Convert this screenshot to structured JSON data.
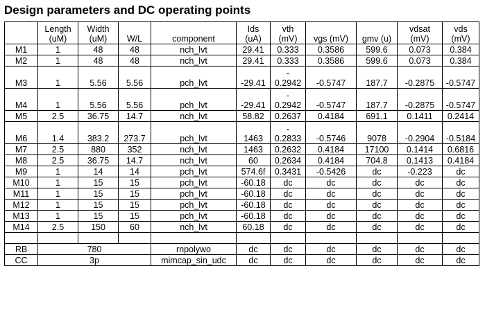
{
  "title": "Design parameters and DC operating points",
  "headers": [
    {
      "l1": "",
      "l2": ""
    },
    {
      "l1": "Length",
      "l2": "(uM)"
    },
    {
      "l1": "Width",
      "l2": "(uM)"
    },
    {
      "l1": "",
      "l2": "W/L"
    },
    {
      "l1": "",
      "l2": "component"
    },
    {
      "l1": "Ids",
      "l2": "(uA)"
    },
    {
      "l1": "vth",
      "l2": "(mV)"
    },
    {
      "l1": "",
      "l2": "vgs (mV)"
    },
    {
      "l1": "",
      "l2": "gmv (u)"
    },
    {
      "l1": "vdsat",
      "l2": "(mV)"
    },
    {
      "l1": "vds",
      "l2": "(mV)"
    }
  ],
  "rows": [
    {
      "tall": false,
      "cells": [
        "M1",
        "1",
        "48",
        "48",
        "nch_lvt",
        "29.41",
        "0.333",
        "0.3586",
        "599.6",
        "0.073",
        "0.384"
      ]
    },
    {
      "tall": false,
      "cells": [
        "M2",
        "1",
        "48",
        "48",
        "nch_lvt",
        "29.41",
        "0.333",
        "0.3586",
        "599.6",
        "0.073",
        "0.384"
      ]
    },
    {
      "tall": true,
      "cells": [
        "M3",
        "1",
        "5.56",
        "5.56",
        "pch_lvt",
        "-29.41",
        "0.2942",
        "-0.5747",
        "187.7",
        "-0.2875",
        "-0.5747"
      ]
    },
    {
      "tall": true,
      "cells": [
        "M4",
        "1",
        "5.56",
        "5.56",
        "pch_lvt",
        "-29.41",
        "0.2942",
        "-0.5747",
        "187.7",
        "-0.2875",
        "-0.5747"
      ]
    },
    {
      "tall": false,
      "cells": [
        "M5",
        "2.5",
        "36.75",
        "14.7",
        "nch_lvt",
        "58.82",
        "0.2637",
        "0.4184",
        "691.1",
        "0.1411",
        "0.2414"
      ]
    },
    {
      "tall": true,
      "cells": [
        "M6",
        "1.4",
        "383.2",
        "273.7",
        "pch_lvt",
        "1463",
        "0.2833",
        "-0.5746",
        "9078",
        "-0.2904",
        "-0.5184"
      ]
    },
    {
      "tall": false,
      "cells": [
        "M7",
        "2.5",
        "880",
        "352",
        "nch_lvt",
        "1463",
        "0.2632",
        "0.4184",
        "17100",
        "0.1414",
        "0.6816"
      ]
    },
    {
      "tall": false,
      "cells": [
        "M8",
        "2.5",
        "36.75",
        "14.7",
        "nch_lvt",
        "60",
        "0.2634",
        "0.4184",
        "704.8",
        "0.1413",
        "0.4184"
      ]
    },
    {
      "tall": false,
      "cells": [
        "M9",
        "1",
        "14",
        "14",
        "pch_lvt",
        "574.6f",
        "0.3431",
        "-0.5426",
        "dc",
        "-0.223",
        "dc"
      ]
    },
    {
      "tall": false,
      "cells": [
        "M10",
        "1",
        "15",
        "15",
        "pch_lvt",
        "-60.18",
        "dc",
        "dc",
        "dc",
        "dc",
        "dc"
      ]
    },
    {
      "tall": false,
      "cells": [
        "M11",
        "1",
        "15",
        "15",
        "pch_lvt",
        "-60.18",
        "dc",
        "dc",
        "dc",
        "dc",
        "dc"
      ]
    },
    {
      "tall": false,
      "cells": [
        "M12",
        "1",
        "15",
        "15",
        "pch_lvt",
        "-60.18",
        "dc",
        "dc",
        "dc",
        "dc",
        "dc"
      ]
    },
    {
      "tall": false,
      "cells": [
        "M13",
        "1",
        "15",
        "15",
        "pch_lvt",
        "-60.18",
        "dc",
        "dc",
        "dc",
        "dc",
        "dc"
      ]
    },
    {
      "tall": false,
      "cells": [
        "M14",
        "2.5",
        "150",
        "60",
        "nch_lvt",
        "60.18",
        "dc",
        "dc",
        "dc",
        "dc",
        "dc"
      ]
    }
  ],
  "vth_dash": "-",
  "passives": [
    {
      "name": "RB",
      "value": "780",
      "component": "rnpolywo",
      "cells": [
        "dc",
        "dc",
        "dc",
        "dc",
        "dc",
        "dc"
      ]
    },
    {
      "name": "CC",
      "value": "3p",
      "component": "mimcap_sin_udc",
      "cells": [
        "dc",
        "dc",
        "dc",
        "dc",
        "dc",
        "dc"
      ]
    }
  ]
}
